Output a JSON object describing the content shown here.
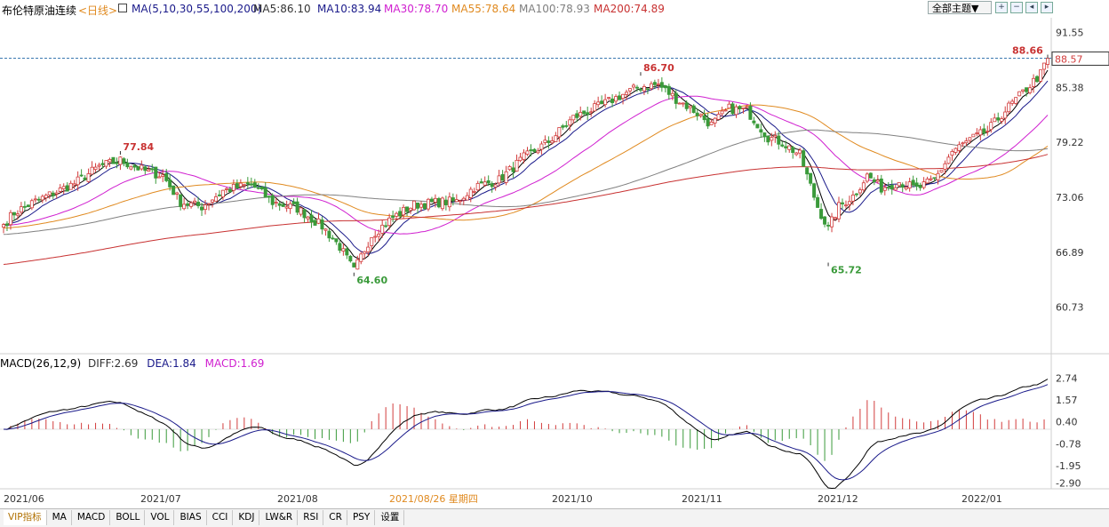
{
  "header": {
    "instrument": "布伦特原油连续",
    "period": "<日线>",
    "ma_label": "MA(5,10,30,55,100,200)",
    "ma5": "MA5:86.10",
    "ma10": "MA10:83.94",
    "ma30": "MA30:78.70",
    "ma55": "MA55:78.64",
    "ma100": "MA100:78.93",
    "ma200": "MA200:74.89",
    "theme_button": "全部主题▼"
  },
  "macd_header": {
    "label": "MACD(26,12,9)",
    "diff": "DIFF:2.69",
    "dea": "DEA:1.84",
    "macd": "MACD:1.69"
  },
  "colors": {
    "up": "#d23c3c",
    "down": "#3a9a3a",
    "ma5": "#000000",
    "ma10": "#1a1a8a",
    "ma30": "#d020d0",
    "ma55": "#e08a20",
    "ma100": "#808080",
    "ma200": "#c83232",
    "diff": "#000000",
    "dea": "#1a1a8a",
    "text_blue": "#1a1a8a",
    "label_red": "#c83232",
    "label_green": "#3a9a3a"
  },
  "tabs": [
    "VIP指标",
    "MA",
    "MACD",
    "BOLL",
    "VOL",
    "BIAS",
    "CCI",
    "KDJ",
    "LW&R",
    "RSI",
    "CR",
    "PSY",
    "设置"
  ],
  "chart_data": [
    {
      "type": "candlestick",
      "title": "布伦特原油连续 <日线>",
      "price_axis_ticks": [
        "91.55",
        "85.38",
        "79.22",
        "73.06",
        "66.89",
        "60.73"
      ],
      "ylim": [
        55.5,
        93.2
      ],
      "x_axis_labels": [
        "2021/06",
        "2021/07",
        "2021/08",
        "2021/08/26 星期四",
        "2021/10",
        "2021/11",
        "2021/12",
        "2022/01"
      ],
      "last_price": "88.57",
      "annotations": [
        {
          "text": "77.84",
          "type": "high"
        },
        {
          "text": "64.60",
          "type": "low"
        },
        {
          "text": "86.70",
          "type": "high"
        },
        {
          "text": "65.72",
          "type": "low"
        },
        {
          "text": "88.66",
          "type": "high"
        }
      ],
      "anchors": [
        [
          0,
          70
        ],
        [
          3,
          71.3
        ],
        [
          8,
          72.4
        ],
        [
          14,
          73.5
        ],
        [
          20,
          74.6
        ],
        [
          27,
          76.5
        ],
        [
          33,
          77.2
        ],
        [
          40,
          76
        ],
        [
          45,
          75.5
        ],
        [
          50,
          72.5
        ],
        [
          56,
          72
        ],
        [
          62,
          73.8
        ],
        [
          70,
          74.5
        ],
        [
          76,
          72.5
        ],
        [
          83,
          71.8
        ],
        [
          90,
          69.8
        ],
        [
          95,
          67.5
        ],
        [
          99,
          64.8
        ],
        [
          104,
          68.8
        ],
        [
          110,
          70.8
        ],
        [
          116,
          72.2
        ],
        [
          123,
          72.5
        ],
        [
          128,
          72.6
        ],
        [
          133,
          74.2
        ],
        [
          140,
          75
        ],
        [
          147,
          77.5
        ],
        [
          154,
          79.3
        ],
        [
          161,
          82
        ],
        [
          168,
          83.2
        ],
        [
          175,
          84.6
        ],
        [
          180,
          85.5
        ],
        [
          185,
          85.7
        ],
        [
          190,
          84.1
        ],
        [
          195,
          82.8
        ],
        [
          200,
          81.2
        ],
        [
          205,
          83
        ],
        [
          210,
          82.8
        ],
        [
          216,
          79.8
        ],
        [
          220,
          79.2
        ],
        [
          225,
          77.8
        ],
        [
          230,
          72
        ],
        [
          233,
          69.5
        ],
        [
          236,
          72
        ],
        [
          240,
          73.2
        ],
        [
          244,
          75.5
        ],
        [
          248,
          74.1
        ],
        [
          253,
          74.8
        ],
        [
          258,
          74
        ],
        [
          263,
          75
        ],
        [
          268,
          78.2
        ],
        [
          273,
          79.5
        ],
        [
          278,
          80.5
        ],
        [
          283,
          82.8
        ],
        [
          288,
          84.8
        ],
        [
          293,
          86.9
        ],
        [
          295,
          88.66
        ]
      ],
      "series": [
        {
          "name": "MA5",
          "value": 86.1
        },
        {
          "name": "MA10",
          "value": 83.94
        },
        {
          "name": "MA30",
          "value": 78.7
        },
        {
          "name": "MA55",
          "value": 78.64
        },
        {
          "name": "MA100",
          "value": 78.93
        },
        {
          "name": "MA200",
          "value": 74.89
        }
      ]
    },
    {
      "type": "macd",
      "title": "MACD(26,12,9)",
      "axis_ticks": [
        "2.74",
        "1.57",
        "0.40",
        "-0.78",
        "-1.95",
        "-2.90"
      ],
      "ylim": [
        -3.2,
        3.1
      ],
      "diff": 2.69,
      "dea": 1.84,
      "macd": 1.69
    }
  ]
}
